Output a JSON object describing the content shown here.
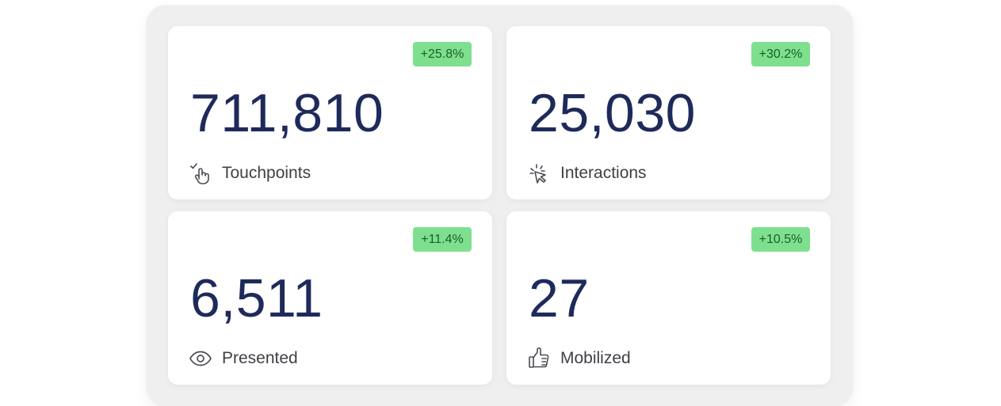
{
  "cards": [
    {
      "badge": "+25.8%",
      "value": "711,810",
      "label": "Touchpoints",
      "icon": "touch-gesture-icon"
    },
    {
      "badge": "+30.2%",
      "value": "25,030",
      "label": "Interactions",
      "icon": "click-burst-icon"
    },
    {
      "badge": "+11.4%",
      "value": "6,511",
      "label": "Presented",
      "icon": "eye-icon"
    },
    {
      "badge": "+10.5%",
      "value": "27",
      "label": "Mobilized",
      "icon": "thumbs-up-icon"
    }
  ],
  "colors": {
    "panel_bg": "#efefef",
    "card_bg": "#ffffff",
    "value_text": "#1e2a5a",
    "badge_bg": "#7ee08f",
    "badge_text": "#1a5e2a",
    "label_text": "#3f3f46"
  }
}
